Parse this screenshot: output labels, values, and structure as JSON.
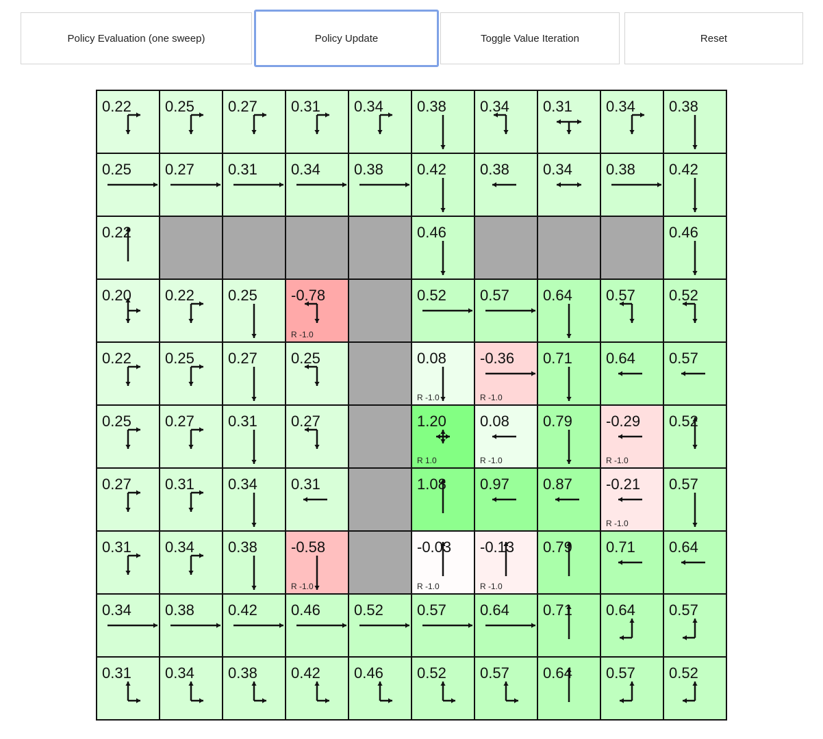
{
  "toolbar": {
    "buttons": [
      {
        "label": "Policy Evaluation (one sweep)"
      },
      {
        "label": "Policy Update",
        "focused": true
      },
      {
        "label": "Toggle Value Iteration"
      },
      {
        "label": "Reset"
      }
    ]
  },
  "colors": {
    "wall": "#a9a9a9",
    "focus_border": "#7fa2e6",
    "grid_line": "#111111"
  },
  "grid": {
    "rows": [
      [
        {
          "v": "0.22",
          "p": "DR"
        },
        {
          "v": "0.25",
          "p": "DR"
        },
        {
          "v": "0.27",
          "p": "DR"
        },
        {
          "v": "0.31",
          "p": "DR"
        },
        {
          "v": "0.34",
          "p": "DR"
        },
        {
          "v": "0.38",
          "p": "D"
        },
        {
          "v": "0.34",
          "p": "LD"
        },
        {
          "v": "0.31",
          "p": "LRD"
        },
        {
          "v": "0.34",
          "p": "DR"
        },
        {
          "v": "0.38",
          "p": "D"
        }
      ],
      [
        {
          "v": "0.25",
          "p": "R"
        },
        {
          "v": "0.27",
          "p": "R"
        },
        {
          "v": "0.31",
          "p": "R"
        },
        {
          "v": "0.34",
          "p": "R"
        },
        {
          "v": "0.38",
          "p": "R"
        },
        {
          "v": "0.42",
          "p": "D"
        },
        {
          "v": "0.38",
          "p": "L"
        },
        {
          "v": "0.34",
          "p": "LR"
        },
        {
          "v": "0.38",
          "p": "R"
        },
        {
          "v": "0.42",
          "p": "D"
        }
      ],
      [
        {
          "v": "0.22",
          "p": "U"
        },
        {
          "wall": true
        },
        {
          "wall": true
        },
        {
          "wall": true
        },
        {
          "wall": true
        },
        {
          "v": "0.46",
          "p": "D"
        },
        {
          "wall": true
        },
        {
          "wall": true
        },
        {
          "wall": true
        },
        {
          "v": "0.46",
          "p": "D"
        }
      ],
      [
        {
          "v": "0.20",
          "p": "UDR"
        },
        {
          "v": "0.22",
          "p": "DR"
        },
        {
          "v": "0.25",
          "p": "D"
        },
        {
          "v": "-0.78",
          "p": "LD",
          "r": "R -1.0"
        },
        {
          "wall": true
        },
        {
          "v": "0.52",
          "p": "R"
        },
        {
          "v": "0.57",
          "p": "R"
        },
        {
          "v": "0.64",
          "p": "D"
        },
        {
          "v": "0.57",
          "p": "LD"
        },
        {
          "v": "0.52",
          "p": "LD"
        }
      ],
      [
        {
          "v": "0.22",
          "p": "DR"
        },
        {
          "v": "0.25",
          "p": "DR"
        },
        {
          "v": "0.27",
          "p": "D"
        },
        {
          "v": "0.25",
          "p": "LD"
        },
        {
          "wall": true
        },
        {
          "v": "0.08",
          "p": "D",
          "r": "R -1.0"
        },
        {
          "v": "-0.36",
          "p": "R",
          "r": "R -1.0"
        },
        {
          "v": "0.71",
          "p": "D"
        },
        {
          "v": "0.64",
          "p": "L"
        },
        {
          "v": "0.57",
          "p": "L"
        }
      ],
      [
        {
          "v": "0.25",
          "p": "DR"
        },
        {
          "v": "0.27",
          "p": "DR"
        },
        {
          "v": "0.31",
          "p": "D"
        },
        {
          "v": "0.27",
          "p": "LD"
        },
        {
          "wall": true
        },
        {
          "v": "1.20",
          "p": "UDLR",
          "r": "R 1.0"
        },
        {
          "v": "0.08",
          "p": "L",
          "r": "R -1.0"
        },
        {
          "v": "0.79",
          "p": "D"
        },
        {
          "v": "-0.29",
          "p": "L",
          "r": "R -1.0"
        },
        {
          "v": "0.52",
          "p": "UD"
        }
      ],
      [
        {
          "v": "0.27",
          "p": "DR"
        },
        {
          "v": "0.31",
          "p": "DR"
        },
        {
          "v": "0.34",
          "p": "D"
        },
        {
          "v": "0.31",
          "p": "L"
        },
        {
          "wall": true
        },
        {
          "v": "1.08",
          "p": "U"
        },
        {
          "v": "0.97",
          "p": "L"
        },
        {
          "v": "0.87",
          "p": "L"
        },
        {
          "v": "-0.21",
          "p": "L",
          "r": "R -1.0"
        },
        {
          "v": "0.57",
          "p": "D"
        }
      ],
      [
        {
          "v": "0.31",
          "p": "DR"
        },
        {
          "v": "0.34",
          "p": "DR"
        },
        {
          "v": "0.38",
          "p": "D"
        },
        {
          "v": "-0.58",
          "p": "D",
          "r": "R -1.0"
        },
        {
          "wall": true
        },
        {
          "v": "-0.03",
          "p": "U",
          "r": "R -1.0"
        },
        {
          "v": "-0.13",
          "p": "U",
          "r": "R -1.0"
        },
        {
          "v": "0.79",
          "p": "U"
        },
        {
          "v": "0.71",
          "p": "L"
        },
        {
          "v": "0.64",
          "p": "L"
        }
      ],
      [
        {
          "v": "0.34",
          "p": "R"
        },
        {
          "v": "0.38",
          "p": "R"
        },
        {
          "v": "0.42",
          "p": "R"
        },
        {
          "v": "0.46",
          "p": "R"
        },
        {
          "v": "0.52",
          "p": "R"
        },
        {
          "v": "0.57",
          "p": "R"
        },
        {
          "v": "0.64",
          "p": "R"
        },
        {
          "v": "0.71",
          "p": "U"
        },
        {
          "v": "0.64",
          "p": "UL"
        },
        {
          "v": "0.57",
          "p": "UL"
        }
      ],
      [
        {
          "v": "0.31",
          "p": "UR"
        },
        {
          "v": "0.34",
          "p": "UR"
        },
        {
          "v": "0.38",
          "p": "UR"
        },
        {
          "v": "0.42",
          "p": "UR"
        },
        {
          "v": "0.46",
          "p": "UR"
        },
        {
          "v": "0.52",
          "p": "UR"
        },
        {
          "v": "0.57",
          "p": "UR"
        },
        {
          "v": "0.64",
          "p": "U"
        },
        {
          "v": "0.57",
          "p": "UL"
        },
        {
          "v": "0.52",
          "p": "UL"
        }
      ]
    ]
  }
}
